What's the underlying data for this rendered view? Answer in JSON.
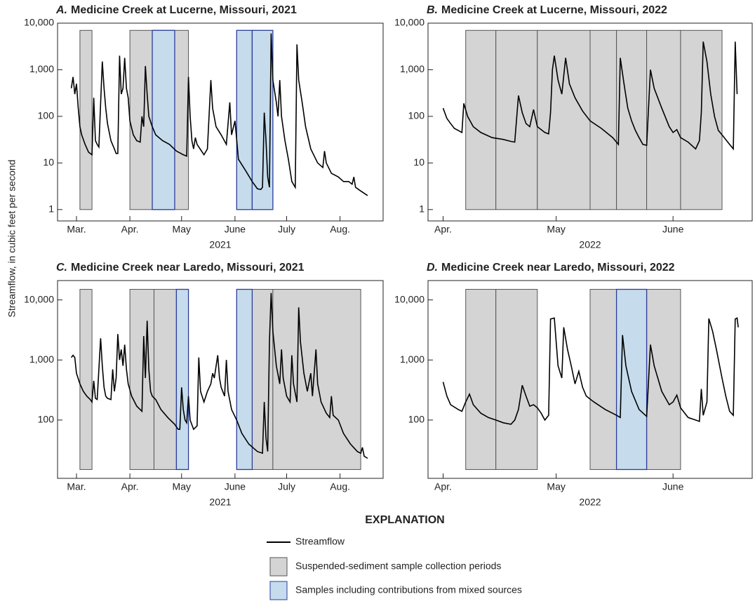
{
  "ylabel": "Streamflow, in cubic feet per second",
  "legend": {
    "title": "EXPLANATION",
    "items": [
      {
        "name": "Streamflow",
        "color": "#000000"
      },
      {
        "name": "Suspended-sediment sample collection periods",
        "color": "#d4d4d4"
      },
      {
        "name": "Samples including contributions from mixed sources",
        "color": "#c6dcec"
      }
    ]
  },
  "chart_data": [
    {
      "type": "line",
      "panel": "A.",
      "title": "Medicine Creek at Lucerne, Missouri, 2021",
      "xlabel": "2021",
      "log_y": true,
      "xlim": [
        49,
        238
      ],
      "ylim": [
        0.57,
        10000
      ],
      "xticks": [
        {
          "value": 60,
          "label": "Mar."
        },
        {
          "value": 91,
          "label": "Apr."
        },
        {
          "value": 121,
          "label": "May"
        },
        {
          "value": 152,
          "label": "June"
        },
        {
          "value": 182,
          "label": "July"
        },
        {
          "value": 213,
          "label": "Aug."
        }
      ],
      "yticks": [
        1,
        10,
        100,
        {
          "value": 1000,
          "label": "1,000"
        },
        {
          "value": 10000,
          "label": "10,000"
        }
      ],
      "band_ylim": [
        1,
        7000
      ],
      "sample_periods": [
        [
          62,
          69
        ],
        [
          91,
          125
        ]
      ],
      "mixed_periods": [
        [
          104,
          117
        ],
        [
          153,
          162
        ],
        [
          162,
          174
        ]
      ],
      "color": "#000000",
      "x": [
        57,
        58,
        59,
        60,
        61,
        62,
        63,
        65,
        67,
        69,
        70,
        71,
        72,
        73,
        75,
        76,
        77,
        78,
        80,
        82,
        83,
        84,
        85,
        86,
        87,
        88,
        89,
        90,
        91,
        93,
        95,
        97,
        98,
        99,
        100,
        101,
        102,
        104,
        106,
        110,
        114,
        118,
        122,
        124,
        125,
        126,
        127,
        128,
        129,
        130,
        134,
        136,
        138,
        139,
        141,
        144,
        147,
        149,
        150,
        152,
        154,
        158,
        162,
        165,
        167,
        168,
        169,
        170,
        171,
        172,
        173,
        174,
        176,
        177,
        178,
        179,
        181,
        183,
        185,
        187,
        188,
        189,
        191,
        193,
        196,
        200,
        203,
        204,
        205,
        208,
        212,
        215,
        218,
        220,
        221,
        222,
        225,
        229
      ],
      "values": [
        400,
        700,
        300,
        500,
        150,
        60,
        40,
        25,
        17,
        15,
        250,
        30,
        25,
        22,
        1500,
        400,
        150,
        70,
        30,
        20,
        16,
        16,
        2000,
        300,
        400,
        1800,
        400,
        250,
        80,
        40,
        30,
        28,
        100,
        60,
        1200,
        300,
        100,
        60,
        40,
        30,
        25,
        18,
        15,
        14,
        700,
        100,
        30,
        20,
        35,
        25,
        15,
        20,
        600,
        150,
        60,
        40,
        25,
        200,
        40,
        80,
        12,
        7,
        4,
        2.8,
        2.7,
        3,
        120,
        30,
        5,
        3,
        6000,
        600,
        200,
        100,
        600,
        100,
        30,
        12,
        4,
        3,
        3500,
        600,
        200,
        60,
        20,
        10,
        8,
        18,
        10,
        6,
        5,
        4,
        4,
        3.5,
        5,
        3,
        2.5,
        2
      ]
    },
    {
      "type": "line",
      "panel": "B.",
      "title": "Medicine Creek at Lucerne, Missouri, 2022",
      "xlabel": "2022",
      "log_y": true,
      "xlim": [
        87,
        173
      ],
      "ylim": [
        0.57,
        10000
      ],
      "xticks": [
        {
          "value": 91,
          "label": "Apr."
        },
        {
          "value": 121,
          "label": "May"
        },
        {
          "value": 152,
          "label": "June"
        }
      ],
      "yticks": [
        1,
        10,
        100,
        {
          "value": 1000,
          "label": "1,000"
        },
        {
          "value": 10000,
          "label": "10,000"
        }
      ],
      "band_ylim": [
        1,
        7000
      ],
      "sample_periods": [
        [
          97,
          105
        ],
        [
          105,
          116
        ],
        [
          116,
          130
        ],
        [
          130,
          137
        ],
        [
          137,
          145
        ],
        [
          145,
          154
        ],
        [
          154,
          165
        ]
      ],
      "mixed_periods": [],
      "color": "#000000",
      "x": [
        91,
        92,
        93,
        94,
        95,
        96,
        96.5,
        97.5,
        99,
        101,
        104,
        107,
        109,
        110,
        111,
        112,
        113,
        114,
        115,
        116,
        118,
        119,
        119.5,
        120,
        120.5,
        121.5,
        122.5,
        123.5,
        124.5,
        126,
        128,
        130,
        133,
        136,
        137,
        137.5,
        138,
        139,
        140,
        141,
        142,
        143,
        144,
        145,
        146,
        147,
        149,
        151,
        152,
        153,
        154,
        156,
        158,
        159,
        159.5,
        160,
        161,
        162,
        163,
        164,
        165,
        167,
        168,
        168.5,
        169
      ],
      "values": [
        150,
        90,
        70,
        55,
        50,
        45,
        190,
        100,
        60,
        45,
        35,
        32,
        29,
        28,
        280,
        120,
        70,
        60,
        140,
        60,
        45,
        42,
        120,
        1000,
        2000,
        600,
        300,
        1800,
        500,
        250,
        130,
        80,
        55,
        35,
        28,
        25,
        1800,
        500,
        150,
        80,
        50,
        35,
        25,
        24,
        1000,
        400,
        150,
        60,
        45,
        52,
        35,
        28,
        20,
        30,
        120,
        4000,
        1500,
        300,
        100,
        50,
        40,
        25,
        20,
        4000,
        300
      ]
    },
    {
      "type": "line",
      "panel": "C.",
      "title": "Medicine Creek near Laredo, Missouri, 2021",
      "xlabel": "2021",
      "log_y": true,
      "xlim": [
        49,
        238
      ],
      "ylim": [
        10.7,
        21000
      ],
      "xticks": [
        {
          "value": 60,
          "label": "Mar."
        },
        {
          "value": 91,
          "label": "Apr."
        },
        {
          "value": 121,
          "label": "May"
        },
        {
          "value": 152,
          "label": "June"
        },
        {
          "value": 182,
          "label": "July"
        },
        {
          "value": 213,
          "label": "Aug."
        }
      ],
      "yticks": [
        100,
        {
          "value": 1000,
          "label": "1,000"
        },
        {
          "value": 10000,
          "label": "10,000"
        }
      ],
      "band_ylim": [
        15,
        15000
      ],
      "sample_periods": [
        [
          62,
          69
        ],
        [
          91,
          105
        ],
        [
          105,
          118
        ],
        [
          162,
          174
        ],
        [
          174,
          225
        ]
      ],
      "mixed_periods": [
        [
          118,
          125
        ],
        [
          153,
          162
        ]
      ],
      "color": "#000000",
      "x": [
        57,
        58,
        59,
        60,
        62,
        64,
        66,
        68,
        69,
        70,
        71,
        72,
        74,
        75,
        76,
        77,
        78,
        80,
        81,
        82,
        83,
        84,
        85,
        86,
        87,
        88,
        89,
        90,
        92,
        95,
        98,
        99,
        100,
        101,
        102,
        103,
        104,
        106,
        109,
        113,
        117,
        119,
        120,
        121,
        122,
        123,
        124,
        125,
        126,
        128,
        130,
        131,
        132,
        134,
        136,
        138,
        139,
        140,
        142,
        143,
        144,
        146,
        147,
        148,
        150,
        153,
        156,
        160,
        165,
        168,
        169,
        170,
        171,
        172,
        173,
        174,
        176,
        178,
        179,
        180,
        182,
        184,
        185,
        186,
        188,
        189,
        190,
        192,
        194,
        196,
        197,
        199,
        200,
        202,
        205,
        207,
        208,
        209,
        212,
        215,
        219,
        223,
        225,
        226,
        227,
        229
      ],
      "values": [
        1100,
        1200,
        1100,
        600,
        400,
        300,
        250,
        220,
        200,
        450,
        230,
        220,
        2300,
        800,
        350,
        250,
        230,
        220,
        700,
        300,
        500,
        2700,
        1000,
        1500,
        800,
        1800,
        700,
        400,
        250,
        170,
        140,
        2500,
        500,
        4500,
        700,
        300,
        250,
        220,
        150,
        110,
        85,
        70,
        70,
        350,
        150,
        100,
        90,
        250,
        100,
        70,
        80,
        1100,
        300,
        200,
        300,
        400,
        600,
        500,
        1200,
        500,
        350,
        250,
        1000,
        300,
        150,
        100,
        60,
        40,
        30,
        28,
        200,
        50,
        30,
        2000,
        13000,
        3000,
        800,
        400,
        1500,
        500,
        250,
        200,
        1200,
        400,
        200,
        7500,
        2000,
        600,
        300,
        600,
        250,
        1500,
        400,
        200,
        130,
        110,
        250,
        120,
        100,
        60,
        40,
        30,
        28,
        35,
        25,
        23
      ]
    },
    {
      "type": "line",
      "panel": "D.",
      "title": "Medicine Creek near Laredo, Missouri, 2022",
      "xlabel": "2022",
      "log_y": true,
      "xlim": [
        87,
        173
      ],
      "ylim": [
        10.7,
        21000
      ],
      "xticks": [
        {
          "value": 91,
          "label": "Apr."
        },
        {
          "value": 121,
          "label": "May"
        },
        {
          "value": 152,
          "label": "June"
        }
      ],
      "yticks": [
        100,
        {
          "value": 1000,
          "label": "1,000"
        },
        {
          "value": 10000,
          "label": "10,000"
        }
      ],
      "band_ylim": [
        15,
        15000
      ],
      "sample_periods": [
        [
          97,
          105
        ],
        [
          105,
          116
        ],
        [
          130,
          137
        ],
        [
          145,
          154
        ]
      ],
      "mixed_periods": [
        [
          137,
          145
        ]
      ],
      "color": "#000000",
      "x": [
        91,
        92,
        93,
        95,
        96,
        97,
        98,
        99,
        101,
        103,
        105,
        107,
        109,
        110,
        111,
        112,
        113,
        114,
        115,
        116,
        117,
        118,
        119,
        119.5,
        120.5,
        121.5,
        122.5,
        123,
        124,
        125,
        126,
        127,
        128,
        129,
        131,
        134,
        137,
        138,
        138.6,
        139.5,
        141,
        143,
        145,
        146,
        147,
        149,
        151,
        152,
        153,
        154,
        156,
        158,
        159,
        159.5,
        160,
        161,
        161.5,
        162.5,
        163.5,
        165,
        166,
        167,
        168,
        168.5,
        169,
        169.3
      ],
      "values": [
        430,
        250,
        180,
        150,
        140,
        200,
        270,
        180,
        130,
        110,
        100,
        90,
        85,
        100,
        150,
        380,
        250,
        170,
        180,
        160,
        130,
        100,
        120,
        4800,
        5000,
        800,
        500,
        3500,
        1500,
        800,
        400,
        650,
        350,
        250,
        200,
        150,
        120,
        110,
        2600,
        800,
        300,
        150,
        115,
        1800,
        800,
        300,
        180,
        200,
        260,
        160,
        110,
        100,
        95,
        330,
        120,
        200,
        4900,
        3000,
        1500,
        500,
        250,
        140,
        120,
        4800,
        5000,
        3500
      ]
    }
  ]
}
